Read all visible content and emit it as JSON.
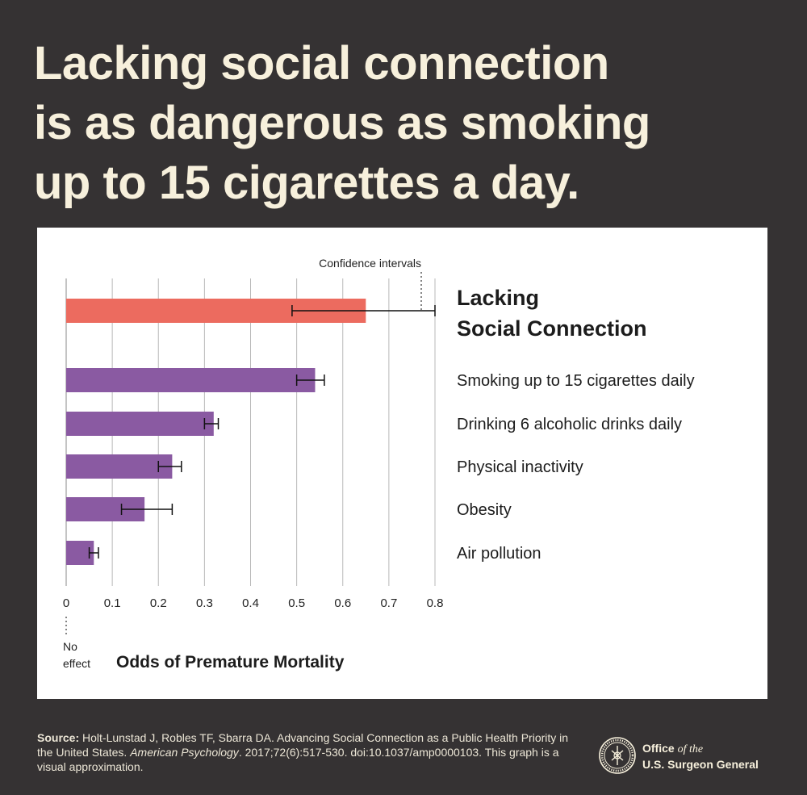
{
  "headline": {
    "lines": [
      "Lacking social connection",
      "is as dangerous as smoking",
      "up to 15 cigarettes a day."
    ]
  },
  "colors": {
    "background": "#353233",
    "headline": "#f7f0dc",
    "highlight_bar": "#ec6b5f",
    "bar": "#8a5aa2",
    "grid": "#b8b8b8"
  },
  "chart_data": {
    "type": "bar",
    "orientation": "horizontal",
    "xlabel": "Odds of Premature Mortality",
    "xlim": [
      0,
      0.8
    ],
    "xticks": [
      "0",
      "0.1",
      "0.2",
      "0.3",
      "0.4",
      "0.5",
      "0.6",
      "0.7",
      "0.8"
    ],
    "grid": true,
    "annotations": {
      "ci_label": "Confidence intervals",
      "zero_label_line1": "No",
      "zero_label_line2": "effect"
    },
    "bars": [
      {
        "label": "Lacking Social Connection",
        "label_lines": [
          "Lacking",
          "Social Connection"
        ],
        "value": 0.65,
        "ci_low": 0.49,
        "ci_high": 0.8,
        "highlight": true
      },
      {
        "label": "Smoking up to 15 cigarettes daily",
        "value": 0.54,
        "ci_low": 0.5,
        "ci_high": 0.56,
        "highlight": false
      },
      {
        "label": "Drinking 6 alcoholic drinks daily",
        "value": 0.32,
        "ci_low": 0.3,
        "ci_high": 0.33,
        "highlight": false
      },
      {
        "label": "Physical inactivity",
        "value": 0.23,
        "ci_low": 0.2,
        "ci_high": 0.25,
        "highlight": false
      },
      {
        "label": "Obesity",
        "value": 0.17,
        "ci_low": 0.12,
        "ci_high": 0.23,
        "highlight": false
      },
      {
        "label": "Air pollution",
        "value": 0.06,
        "ci_low": 0.05,
        "ci_high": 0.07,
        "highlight": false
      }
    ]
  },
  "footer": {
    "source_label": "Source:",
    "source_text_1": " Holt-Lunstad J, Robles TF, Sbarra DA. Advancing Social Connection as a Public Health Priority in the United States. ",
    "source_journal": "American Psychology",
    "source_text_2": ". 2017;72(6):517-530. doi:10.1037/amp0000103. This graph is a visual approximation.",
    "office_line1": "Office",
    "office_of_the": "of the",
    "office_line2": "U.S. Surgeon General"
  }
}
